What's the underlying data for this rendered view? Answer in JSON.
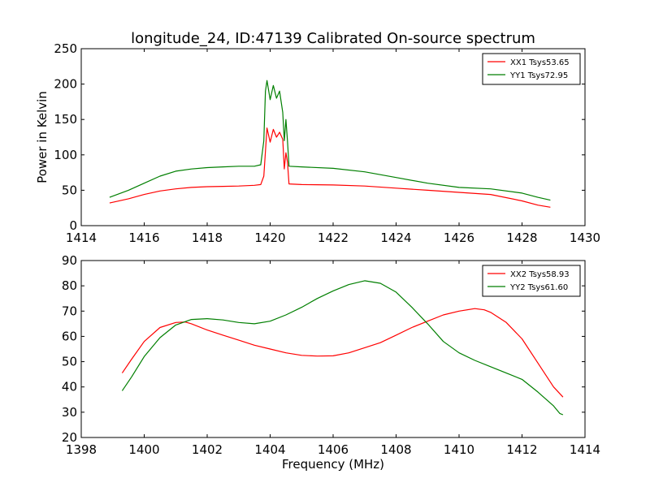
{
  "figure": {
    "title": "longitude_24, ID:47139 Calibrated On-source spectrum"
  },
  "chart_data": [
    {
      "type": "line",
      "ylabel": "Power in Kelvin",
      "xlabel": "",
      "xlim": [
        1414,
        1430
      ],
      "ylim": [
        0,
        250
      ],
      "xticks": [
        "1414",
        "1416",
        "1418",
        "1420",
        "1422",
        "1424",
        "1426",
        "1428",
        "1430"
      ],
      "yticks": [
        "0",
        "50",
        "100",
        "150",
        "200",
        "250"
      ],
      "grid": false,
      "legend_position": "top-right",
      "series": [
        {
          "name": "XX1 Tsys53.65",
          "color": "#ff0000",
          "points": [
            [
              1414.9,
              32
            ],
            [
              1415.5,
              38
            ],
            [
              1416.0,
              44
            ],
            [
              1416.5,
              49
            ],
            [
              1417.0,
              52
            ],
            [
              1417.5,
              54
            ],
            [
              1418.0,
              55
            ],
            [
              1418.5,
              55.5
            ],
            [
              1419.0,
              56
            ],
            [
              1419.5,
              57
            ],
            [
              1419.7,
              58
            ],
            [
              1419.8,
              70
            ],
            [
              1419.9,
              138
            ],
            [
              1420.0,
              118
            ],
            [
              1420.1,
              136
            ],
            [
              1420.2,
              125
            ],
            [
              1420.3,
              132
            ],
            [
              1420.4,
              122
            ],
            [
              1420.45,
              80
            ],
            [
              1420.5,
              103
            ],
            [
              1420.55,
              90
            ],
            [
              1420.6,
              59
            ],
            [
              1421.0,
              58
            ],
            [
              1422.0,
              57.5
            ],
            [
              1423.0,
              56
            ],
            [
              1424.0,
              53
            ],
            [
              1425.0,
              50
            ],
            [
              1426.0,
              47
            ],
            [
              1427.0,
              44
            ],
            [
              1428.0,
              35
            ],
            [
              1428.5,
              29
            ],
            [
              1428.9,
              26
            ]
          ]
        },
        {
          "name": "YY1 Tsys72.95",
          "color": "#007f00",
          "points": [
            [
              1414.9,
              40
            ],
            [
              1415.5,
              50
            ],
            [
              1416.0,
              60
            ],
            [
              1416.5,
              70
            ],
            [
              1417.0,
              77
            ],
            [
              1417.5,
              80
            ],
            [
              1418.0,
              82
            ],
            [
              1418.5,
              83
            ],
            [
              1419.0,
              84
            ],
            [
              1419.5,
              84
            ],
            [
              1419.7,
              86
            ],
            [
              1419.8,
              120
            ],
            [
              1419.85,
              190
            ],
            [
              1419.9,
              205
            ],
            [
              1420.0,
              178
            ],
            [
              1420.1,
              198
            ],
            [
              1420.2,
              180
            ],
            [
              1420.3,
              190
            ],
            [
              1420.4,
              160
            ],
            [
              1420.45,
              120
            ],
            [
              1420.5,
              150
            ],
            [
              1420.55,
              120
            ],
            [
              1420.6,
              84
            ],
            [
              1421.0,
              83
            ],
            [
              1422.0,
              81
            ],
            [
              1423.0,
              76
            ],
            [
              1424.0,
              68
            ],
            [
              1425.0,
              60
            ],
            [
              1426.0,
              54
            ],
            [
              1427.0,
              52
            ],
            [
              1428.0,
              46
            ],
            [
              1428.5,
              40
            ],
            [
              1428.9,
              36
            ]
          ]
        }
      ]
    },
    {
      "type": "line",
      "ylabel": "",
      "xlabel": "Frequency (MHz)",
      "xlim": [
        1398,
        1414
      ],
      "ylim": [
        20,
        90
      ],
      "xticks": [
        "1398",
        "1400",
        "1402",
        "1404",
        "1406",
        "1408",
        "1410",
        "1412",
        "1414"
      ],
      "yticks": [
        "20",
        "30",
        "40",
        "50",
        "60",
        "70",
        "80",
        "90"
      ],
      "grid": false,
      "legend_position": "top-right",
      "series": [
        {
          "name": "XX2 Tsys58.93",
          "color": "#ff0000",
          "points": [
            [
              1399.3,
              45.5
            ],
            [
              1399.6,
              51
            ],
            [
              1400.0,
              58
            ],
            [
              1400.5,
              63.5
            ],
            [
              1401.0,
              65.5
            ],
            [
              1401.3,
              65.7
            ],
            [
              1401.5,
              65
            ],
            [
              1402.0,
              62.5
            ],
            [
              1402.5,
              60.5
            ],
            [
              1403.0,
              58.5
            ],
            [
              1403.5,
              56.5
            ],
            [
              1404.0,
              55
            ],
            [
              1404.5,
              53.5
            ],
            [
              1405.0,
              52.5
            ],
            [
              1405.5,
              52.2
            ],
            [
              1406.0,
              52.3
            ],
            [
              1406.5,
              53.5
            ],
            [
              1407.0,
              55.5
            ],
            [
              1407.5,
              57.5
            ],
            [
              1408.0,
              60.5
            ],
            [
              1408.5,
              63.5
            ],
            [
              1409.0,
              66
            ],
            [
              1409.5,
              68.5
            ],
            [
              1410.0,
              70
            ],
            [
              1410.5,
              71
            ],
            [
              1410.8,
              70.5
            ],
            [
              1411.0,
              69.5
            ],
            [
              1411.5,
              65.5
            ],
            [
              1412.0,
              59
            ],
            [
              1412.5,
              49.5
            ],
            [
              1413.0,
              40
            ],
            [
              1413.3,
              36
            ]
          ]
        },
        {
          "name": "YY2 Tsys61.60",
          "color": "#007f00",
          "points": [
            [
              1399.3,
              38.5
            ],
            [
              1399.6,
              44
            ],
            [
              1400.0,
              52
            ],
            [
              1400.5,
              59.5
            ],
            [
              1401.0,
              64.5
            ],
            [
              1401.5,
              66.7
            ],
            [
              1402.0,
              67
            ],
            [
              1402.5,
              66.5
            ],
            [
              1403.0,
              65.5
            ],
            [
              1403.5,
              65
            ],
            [
              1404.0,
              66
            ],
            [
              1404.5,
              68.5
            ],
            [
              1405.0,
              71.5
            ],
            [
              1405.5,
              75
            ],
            [
              1406.0,
              78
            ],
            [
              1406.5,
              80.5
            ],
            [
              1407.0,
              82
            ],
            [
              1407.5,
              81
            ],
            [
              1408.0,
              77.5
            ],
            [
              1408.5,
              71.5
            ],
            [
              1409.0,
              65
            ],
            [
              1409.5,
              58
            ],
            [
              1410.0,
              53.5
            ],
            [
              1410.5,
              50.5
            ],
            [
              1411.0,
              48
            ],
            [
              1411.5,
              45.5
            ],
            [
              1412.0,
              43
            ],
            [
              1412.5,
              38
            ],
            [
              1413.0,
              32.5
            ],
            [
              1413.2,
              29.5
            ],
            [
              1413.3,
              29
            ]
          ]
        }
      ]
    }
  ]
}
